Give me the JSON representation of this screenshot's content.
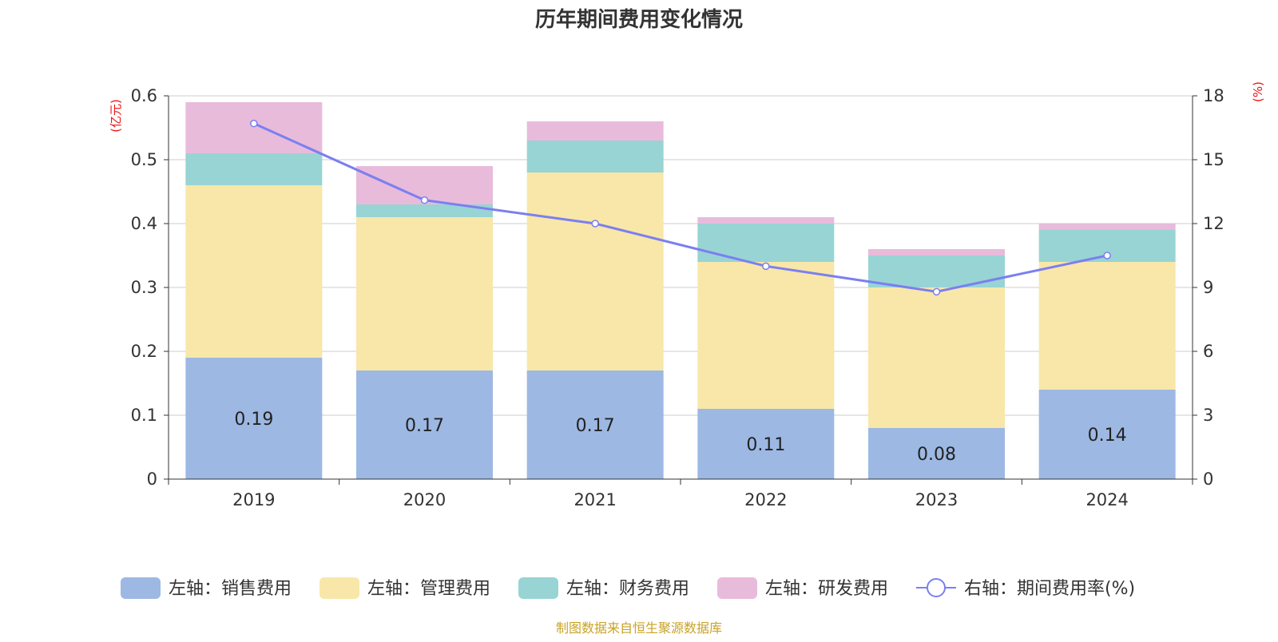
{
  "chart_data": {
    "type": "bar",
    "stacked": true,
    "title": "历年期间费用变化情况",
    "categories": [
      "2019",
      "2020",
      "2021",
      "2022",
      "2023",
      "2024"
    ],
    "series": [
      {
        "name": "左轴：销售费用",
        "axis": "left",
        "color": "#9db8e2",
        "values": [
          0.19,
          0.17,
          0.17,
          0.11,
          0.08,
          0.14
        ],
        "show_labels": true
      },
      {
        "name": "左轴：管理费用",
        "axis": "left",
        "color": "#f8e7a8",
        "values": [
          0.27,
          0.24,
          0.31,
          0.23,
          0.22,
          0.2
        ]
      },
      {
        "name": "左轴：财务费用",
        "axis": "left",
        "color": "#98d4d4",
        "values": [
          0.05,
          0.02,
          0.05,
          0.06,
          0.05,
          0.05
        ]
      },
      {
        "name": "左轴：研发费用",
        "axis": "left",
        "color": "#e8bbdb",
        "values": [
          0.08,
          0.06,
          0.03,
          0.01,
          0.01,
          0.01
        ]
      }
    ],
    "line_series": {
      "name": "右轴：期间费用率(%)",
      "axis": "right",
      "type": "line",
      "color": "#7b7ff0",
      "values": [
        16.7,
        13.1,
        12.0,
        10.0,
        8.8,
        10.5
      ]
    },
    "left_axis": {
      "unit": "(亿元)",
      "ylim": [
        0,
        0.6
      ],
      "ticks": [
        "0",
        "0.1",
        "0.2",
        "0.3",
        "0.4",
        "0.5",
        "0.6"
      ]
    },
    "right_axis": {
      "unit": "(%)",
      "ylim": [
        0,
        18
      ],
      "ticks": [
        "0",
        "3",
        "6",
        "9",
        "12",
        "15",
        "18"
      ]
    },
    "grid": true,
    "legend_position": "bottom",
    "unit_color": "#ee1111"
  },
  "footer": {
    "source": "制图数据来自恒生聚源数据库",
    "color": "#c9a227"
  }
}
